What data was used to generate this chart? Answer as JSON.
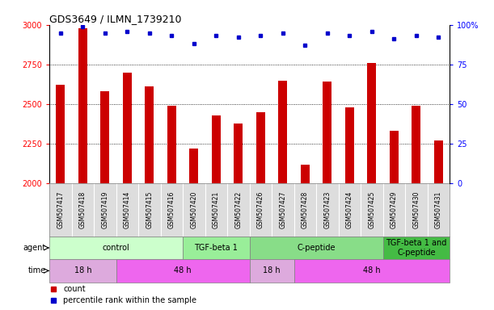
{
  "title": "GDS3649 / ILMN_1739210",
  "samples": [
    "GSM507417",
    "GSM507418",
    "GSM507419",
    "GSM507414",
    "GSM507415",
    "GSM507416",
    "GSM507420",
    "GSM507421",
    "GSM507422",
    "GSM507426",
    "GSM507427",
    "GSM507428",
    "GSM507423",
    "GSM507424",
    "GSM507425",
    "GSM507429",
    "GSM507430",
    "GSM507431"
  ],
  "counts": [
    2620,
    2980,
    2580,
    2700,
    2610,
    2490,
    2220,
    2430,
    2380,
    2450,
    2650,
    2120,
    2640,
    2480,
    2760,
    2330,
    2490,
    2270
  ],
  "percentile_ranks": [
    95,
    99,
    95,
    96,
    95,
    93,
    88,
    93,
    92,
    93,
    95,
    87,
    95,
    93,
    96,
    91,
    93,
    92
  ],
  "bar_color": "#cc0000",
  "dot_color": "#0000cc",
  "ylim_left": [
    2000,
    3000
  ],
  "ylim_right": [
    0,
    100
  ],
  "yticks_left": [
    2000,
    2250,
    2500,
    2750,
    3000
  ],
  "yticks_right": [
    0,
    25,
    50,
    75,
    100
  ],
  "agent_groups": [
    {
      "label": "control",
      "start": 0,
      "end": 6,
      "color": "#ccffcc"
    },
    {
      "label": "TGF-beta 1",
      "start": 6,
      "end": 9,
      "color": "#99ee99"
    },
    {
      "label": "C-peptide",
      "start": 9,
      "end": 15,
      "color": "#88dd88"
    },
    {
      "label": "TGF-beta 1 and\nC-peptide",
      "start": 15,
      "end": 18,
      "color": "#44bb44"
    }
  ],
  "time_groups": [
    {
      "label": "18 h",
      "start": 0,
      "end": 3,
      "color": "#ddaadd"
    },
    {
      "label": "48 h",
      "start": 3,
      "end": 9,
      "color": "#ee66ee"
    },
    {
      "label": "18 h",
      "start": 9,
      "end": 11,
      "color": "#ddaadd"
    },
    {
      "label": "48 h",
      "start": 11,
      "end": 18,
      "color": "#ee66ee"
    }
  ],
  "legend_items": [
    {
      "label": "count",
      "color": "#cc0000"
    },
    {
      "label": "percentile rank within the sample",
      "color": "#0000cc"
    }
  ],
  "sample_bg_color": "#dddddd",
  "grid_color": "#000000",
  "label_fontsize": 7,
  "tick_fontsize": 7,
  "sample_fontsize": 5.5,
  "bar_width": 0.4
}
